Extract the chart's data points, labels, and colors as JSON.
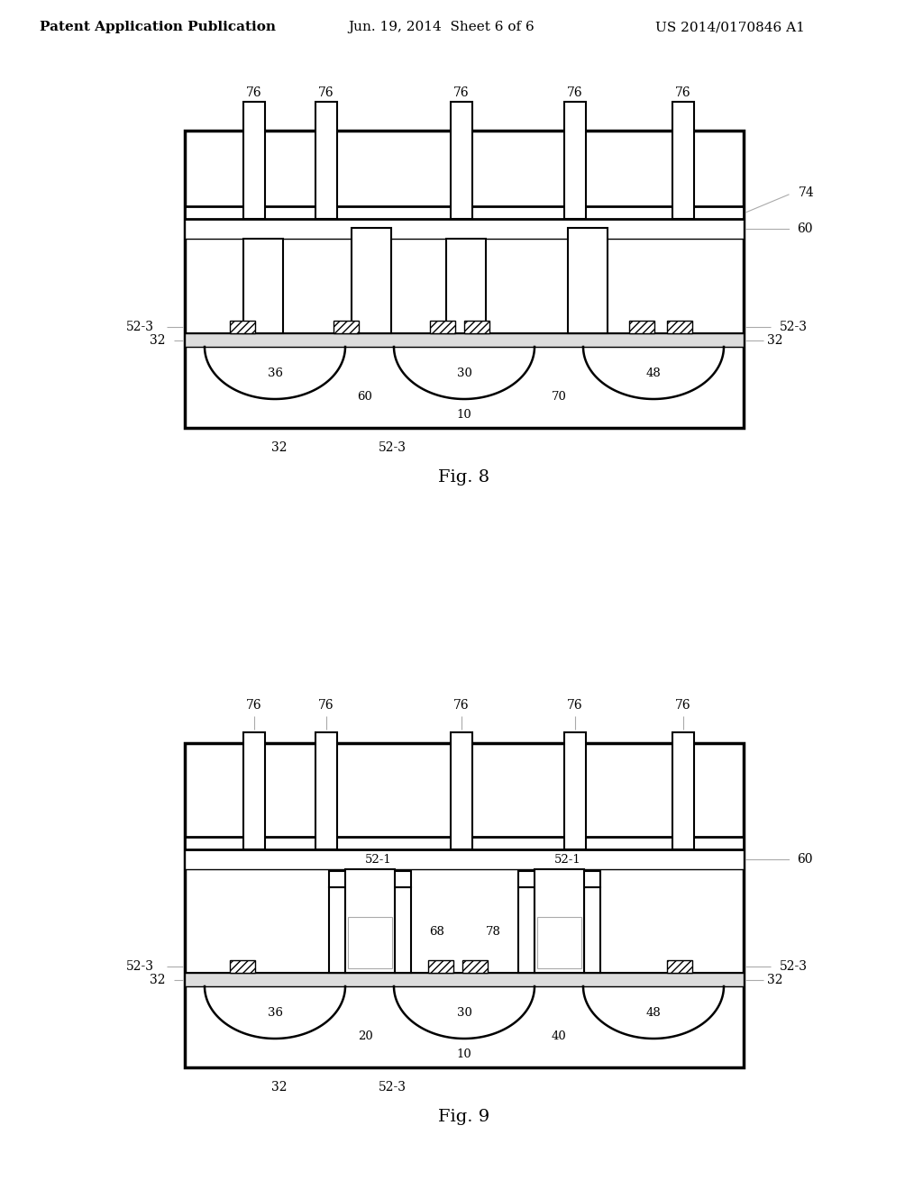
{
  "bg_color": "#ffffff",
  "line_color": "#000000",
  "hatch_color": "#000000",
  "header_text": "Patent Application Publication",
  "header_date": "Jun. 19, 2014  Sheet 6 of 6",
  "header_patent": "US 2014/0170846 A1",
  "fig8_label": "Fig. 8",
  "fig9_label": "Fig. 9",
  "font_size_header": 11,
  "font_size_label": 13,
  "font_size_num": 10
}
